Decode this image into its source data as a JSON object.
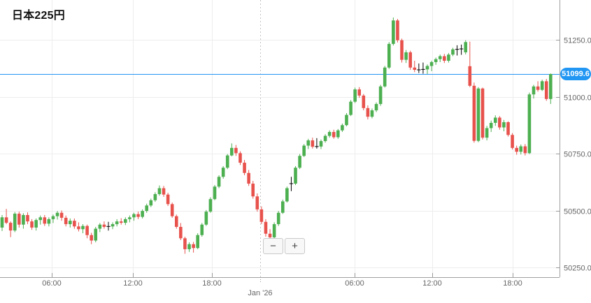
{
  "title": {
    "text": "日本225円"
  },
  "price_badge": {
    "text": "51099.6"
  },
  "controls": {
    "zoom_out_label": "−",
    "zoom_in_label": "+"
  },
  "colors": {
    "up": "#4caf50",
    "down": "#e8524d",
    "doji": "#000000",
    "current_price_line": "#2196f3",
    "badge_bg": "#2196f3",
    "badge_text": "#ffffff",
    "grid": "#ededed",
    "axis_line": "#a0a0a0",
    "tick": "#999999",
    "label_text": "#666666",
    "background": "#ffffff"
  },
  "axes": {
    "y_ticks": [
      {
        "label": "51250.0",
        "price": 51250
      },
      {
        "label": "51000.0",
        "price": 51000
      },
      {
        "label": "50750.0",
        "price": 50750
      },
      {
        "label": "50500.0",
        "price": 50500
      },
      {
        "label": "50250.0",
        "price": 50250
      }
    ],
    "x_ticks": [
      {
        "label": "06:00",
        "x": 74
      },
      {
        "label": "12:00",
        "x": 190
      },
      {
        "label": "18:00",
        "x": 303
      },
      {
        "label": "06:00",
        "x": 507
      },
      {
        "label": "12:00",
        "x": 618
      },
      {
        "label": "18:00",
        "x": 733
      }
    ],
    "boundary": {
      "label": "Jan '26",
      "x": 372
    }
  },
  "chart_data": {
    "type": "candlestick",
    "title": "日本225円",
    "last_price": 51099.6,
    "current_price_line": 51099.6,
    "ylim": [
      50200,
      51430
    ],
    "y_ticks": [
      50250,
      50500,
      50750,
      51000,
      51250
    ],
    "x_tick_labels": [
      "06:00",
      "12:00",
      "18:00",
      "Jan '26",
      "06:00",
      "12:00",
      "18:00"
    ],
    "grid": true,
    "legend": "none",
    "candles_format": [
      "open",
      "high",
      "low",
      "close"
    ],
    "candles": [
      [
        50425,
        50480,
        50410,
        50470
      ],
      [
        50470,
        50507,
        50440,
        50446
      ],
      [
        50446,
        50452,
        50383,
        50412
      ],
      [
        50412,
        50493,
        50405,
        50486
      ],
      [
        50486,
        50495,
        50425,
        50438
      ],
      [
        50438,
        50488,
        50420,
        50480
      ],
      [
        50480,
        50492,
        50440,
        50452
      ],
      [
        50452,
        50462,
        50415,
        50425
      ],
      [
        50425,
        50465,
        50412,
        50458
      ],
      [
        50458,
        50478,
        50438,
        50470
      ],
      [
        50470,
        50480,
        50432,
        50442
      ],
      [
        50442,
        50470,
        50430,
        50462
      ],
      [
        50462,
        50482,
        50445,
        50475
      ],
      [
        50475,
        50498,
        50460,
        50490
      ],
      [
        50490,
        50500,
        50455,
        50468
      ],
      [
        50468,
        50478,
        50430,
        50440
      ],
      [
        50440,
        50465,
        50425,
        50455
      ],
      [
        50455,
        50465,
        50420,
        50430
      ],
      [
        50430,
        50448,
        50408,
        50418
      ],
      [
        50418,
        50440,
        50400,
        50432
      ],
      [
        50432,
        50438,
        50378,
        50392
      ],
      [
        50392,
        50402,
        50352,
        50368
      ],
      [
        50368,
        50428,
        50360,
        50420
      ],
      [
        50420,
        50445,
        50405,
        50438
      ],
      [
        50438,
        50452,
        50420,
        50428
      ],
      [
        50430,
        50450,
        50412,
        50430
      ],
      [
        50430,
        50448,
        50418,
        50440
      ],
      [
        50440,
        50462,
        50430,
        50452
      ],
      [
        50452,
        50466,
        50438,
        50446
      ],
      [
        50446,
        50470,
        50436,
        50462
      ],
      [
        50462,
        50478,
        50448,
        50470
      ],
      [
        50470,
        50490,
        50455,
        50484
      ],
      [
        50484,
        50495,
        50462,
        50472
      ],
      [
        50472,
        50505,
        50465,
        50498
      ],
      [
        50498,
        50530,
        50490,
        50522
      ],
      [
        50522,
        50552,
        50515,
        50545
      ],
      [
        50545,
        50580,
        50538,
        50572
      ],
      [
        50572,
        50610,
        50565,
        50598
      ],
      [
        50598,
        50608,
        50560,
        50570
      ],
      [
        50570,
        50578,
        50520,
        50528
      ],
      [
        50528,
        50535,
        50468,
        50475
      ],
      [
        50475,
        50482,
        50420,
        50428
      ],
      [
        50428,
        50445,
        50370,
        50378
      ],
      [
        50378,
        50385,
        50310,
        50330
      ],
      [
        50330,
        50360,
        50318,
        50352
      ],
      [
        50352,
        50362,
        50315,
        50335
      ],
      [
        50335,
        50400,
        50330,
        50392
      ],
      [
        50392,
        50445,
        50385,
        50438
      ],
      [
        50438,
        50502,
        50432,
        50495
      ],
      [
        50495,
        50558,
        50490,
        50550
      ],
      [
        50550,
        50612,
        50545,
        50605
      ],
      [
        50605,
        50655,
        50598,
        50648
      ],
      [
        50648,
        50695,
        50640,
        50688
      ],
      [
        50688,
        50748,
        50682,
        50742
      ],
      [
        50742,
        50795,
        50738,
        50775
      ],
      [
        50775,
        50788,
        50740,
        50752
      ],
      [
        50752,
        50760,
        50700,
        50710
      ],
      [
        50710,
        50722,
        50655,
        50665
      ],
      [
        50665,
        50678,
        50608,
        50618
      ],
      [
        50618,
        50630,
        50552,
        50562
      ],
      [
        50562,
        50575,
        50495,
        50505
      ],
      [
        50505,
        50518,
        50440,
        50450
      ],
      [
        50450,
        50462,
        50385,
        50398
      ],
      [
        50398,
        50418,
        50350,
        50382
      ],
      [
        50382,
        50448,
        50375,
        50440
      ],
      [
        50440,
        50498,
        50432,
        50490
      ],
      [
        50490,
        50548,
        50485,
        50540
      ],
      [
        50540,
        50605,
        50535,
        50598
      ],
      [
        50618,
        50648,
        50585,
        50618
      ],
      [
        50618,
        50695,
        50612,
        50688
      ],
      [
        50688,
        50748,
        50682,
        50740
      ],
      [
        50740,
        50792,
        50735,
        50785
      ],
      [
        50785,
        50815,
        50770,
        50808
      ],
      [
        50808,
        50820,
        50772,
        50780
      ],
      [
        50781,
        50818,
        50772,
        50781
      ],
      [
        50781,
        50812,
        50770,
        50805
      ],
      [
        50805,
        50835,
        50798,
        50828
      ],
      [
        50828,
        50852,
        50820,
        50845
      ],
      [
        50845,
        50855,
        50815,
        50822
      ],
      [
        50822,
        50858,
        50815,
        50852
      ],
      [
        50852,
        50882,
        50845,
        50875
      ],
      [
        50875,
        50928,
        50870,
        50920
      ],
      [
        50920,
        50985,
        50915,
        50978
      ],
      [
        50978,
        51040,
        50972,
        51032
      ],
      [
        51032,
        51042,
        50995,
        51005
      ],
      [
        51005,
        51012,
        50940,
        50950
      ],
      [
        50950,
        50962,
        50900,
        50912
      ],
      [
        50912,
        50948,
        50905,
        50940
      ],
      [
        50940,
        50975,
        50932,
        50968
      ],
      [
        50968,
        51052,
        50960,
        51045
      ],
      [
        51045,
        51135,
        51040,
        51128
      ],
      [
        51128,
        51240,
        51122,
        51232
      ],
      [
        51232,
        51348,
        51225,
        51335
      ],
      [
        51335,
        51342,
        51238,
        51248
      ],
      [
        51248,
        51255,
        51150,
        51162
      ],
      [
        51162,
        51205,
        51148,
        51195
      ],
      [
        51195,
        51202,
        51118,
        51128
      ],
      [
        51128,
        51158,
        51108,
        51118
      ],
      [
        51118,
        51146,
        51104,
        51118
      ],
      [
        51120,
        51150,
        51101,
        51120
      ],
      [
        51120,
        51142,
        51100,
        51135
      ],
      [
        51135,
        51158,
        51112,
        51152
      ],
      [
        51152,
        51172,
        51140,
        51165
      ],
      [
        51165,
        51185,
        51152,
        51178
      ],
      [
        51178,
        51188,
        51148,
        51158
      ],
      [
        51158,
        51192,
        51150,
        51185
      ],
      [
        51185,
        51215,
        51178,
        51208
      ],
      [
        51208,
        51226,
        51181,
        51208
      ],
      [
        51210,
        51229,
        51184,
        51210
      ],
      [
        51195,
        51248,
        51186,
        51240
      ],
      [
        51134,
        51242,
        51042,
        51048
      ],
      [
        51048,
        51062,
        50798,
        50806
      ],
      [
        50806,
        51042,
        50800,
        51036
      ],
      [
        51036,
        51040,
        50812,
        50820
      ],
      [
        50820,
        50872,
        50808,
        50862
      ],
      [
        50862,
        50895,
        50845,
        50885
      ],
      [
        50885,
        50918,
        50872,
        50908
      ],
      [
        50908,
        50915,
        50855,
        50865
      ],
      [
        50865,
        50898,
        50848,
        50888
      ],
      [
        50888,
        50892,
        50825,
        50832
      ],
      [
        50832,
        50840,
        50768,
        50775
      ],
      [
        50775,
        50785,
        50745,
        50758
      ],
      [
        50758,
        50790,
        50746,
        50782
      ],
      [
        50782,
        50792,
        50742,
        50752
      ],
      [
        50752,
        51018,
        50748,
        51010
      ],
      [
        51010,
        51052,
        50992,
        51045
      ],
      [
        51045,
        51068,
        51022,
        51030
      ],
      [
        51030,
        51075,
        51025,
        51068
      ],
      [
        51068,
        51078,
        50982,
        50990
      ],
      [
        50990,
        51102,
        50968,
        51099.6
      ]
    ]
  }
}
